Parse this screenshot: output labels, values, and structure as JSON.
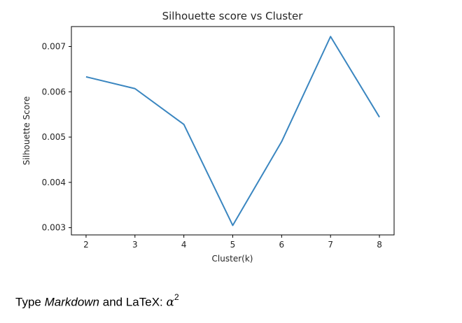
{
  "chart_data": {
    "type": "line",
    "title": "Silhouette score vs Cluster",
    "xlabel": "Cluster(k)",
    "ylabel": "Silhouette Score",
    "x": [
      2,
      3,
      4,
      5,
      6,
      7,
      8
    ],
    "series": [
      {
        "values": [
          0.00633,
          0.00607,
          0.00528,
          0.00305,
          0.0049,
          0.00722,
          0.00544
        ],
        "color": "#3a86c0"
      }
    ],
    "xticks": [
      "2",
      "3",
      "4",
      "5",
      "6",
      "7",
      "8"
    ],
    "yticks": [
      "0.003",
      "0.004",
      "0.005",
      "0.006",
      "0.007"
    ],
    "ytick_values": [
      0.003,
      0.004,
      0.005,
      0.006,
      0.007
    ],
    "xlim": [
      1.7,
      8.3
    ],
    "ylim": [
      0.00284,
      0.00744
    ],
    "grid": false
  },
  "markdown_cell": {
    "prefix": "Type ",
    "italic_word": "Markdown",
    "middle": " and LaTeX: ",
    "math_symbol": "α",
    "math_superscript": "2"
  }
}
